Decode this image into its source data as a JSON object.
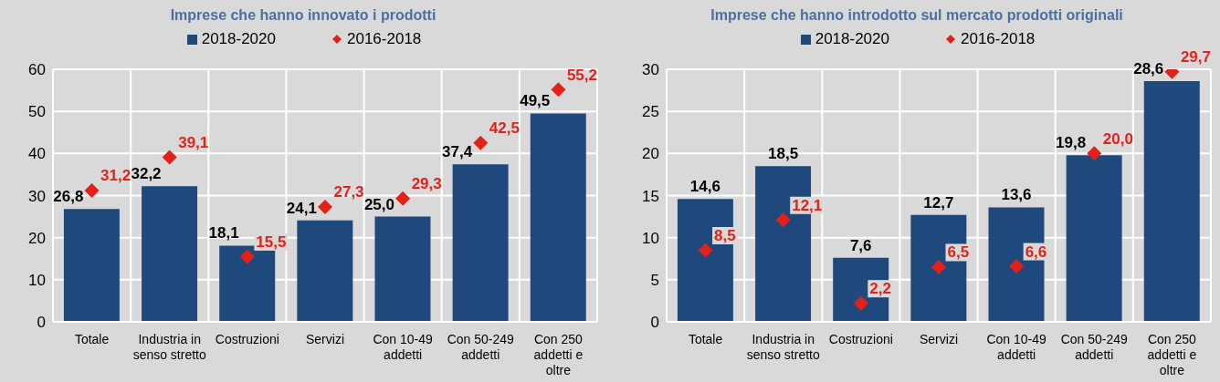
{
  "chart_data": [
    {
      "type": "bar",
      "title": "Imprese che hanno innovato i prodotti",
      "categories": [
        "Totale",
        "Industria in senso stretto",
        "Costruzioni",
        "Servizi",
        "Con 10-49 addetti",
        "Con 50-249 addetti",
        "Con 250 addetti e oltre"
      ],
      "series": [
        {
          "name": "2018-2020",
          "type": "bar",
          "color": "#1f497d",
          "values": [
            26.8,
            32.2,
            18.1,
            24.1,
            25.0,
            37.4,
            49.5
          ],
          "value_labels": [
            "26,8",
            "32,2",
            "18,1",
            "24,1",
            "25,0",
            "37,4",
            "49,5"
          ]
        },
        {
          "name": "2016-2018",
          "type": "scatter",
          "color": "#e32119",
          "marker": "diamond",
          "values": [
            31.2,
            39.1,
            15.5,
            27.3,
            29.3,
            42.5,
            55.2
          ],
          "value_labels": [
            "31,2",
            "39,1",
            "15,5",
            "27,3",
            "29,3",
            "42,5",
            "55,2"
          ]
        }
      ],
      "ylim": [
        0,
        60
      ],
      "yticks": [
        0,
        10,
        20,
        30,
        40,
        50,
        60
      ],
      "grid": true,
      "legend": "top"
    },
    {
      "type": "bar",
      "title": "Imprese che hanno introdotto sul mercato prodotti originali",
      "categories": [
        "Totale",
        "Industria in senso stretto",
        "Costruzioni",
        "Servizi",
        "Con 10-49 addetti",
        "Con 50-249 addetti",
        "Con 250 addetti e oltre"
      ],
      "series": [
        {
          "name": "2018-2020",
          "type": "bar",
          "color": "#1f497d",
          "values": [
            14.6,
            18.5,
            7.6,
            12.7,
            13.6,
            19.8,
            28.6
          ],
          "value_labels": [
            "14,6",
            "18,5",
            "7,6",
            "12,7",
            "13,6",
            "19,8",
            "28,6"
          ]
        },
        {
          "name": "2016-2018",
          "type": "scatter",
          "color": "#e32119",
          "marker": "diamond",
          "values": [
            8.5,
            12.1,
            2.2,
            6.5,
            6.6,
            20.0,
            29.7
          ],
          "value_labels": [
            "8,5",
            "12,1",
            "2,2",
            "6,5",
            "6,6",
            "20,0",
            "29,7"
          ]
        }
      ],
      "ylim": [
        0,
        30
      ],
      "yticks": [
        0,
        5,
        10,
        15,
        20,
        25,
        30
      ],
      "grid": true,
      "legend": "top"
    }
  ]
}
